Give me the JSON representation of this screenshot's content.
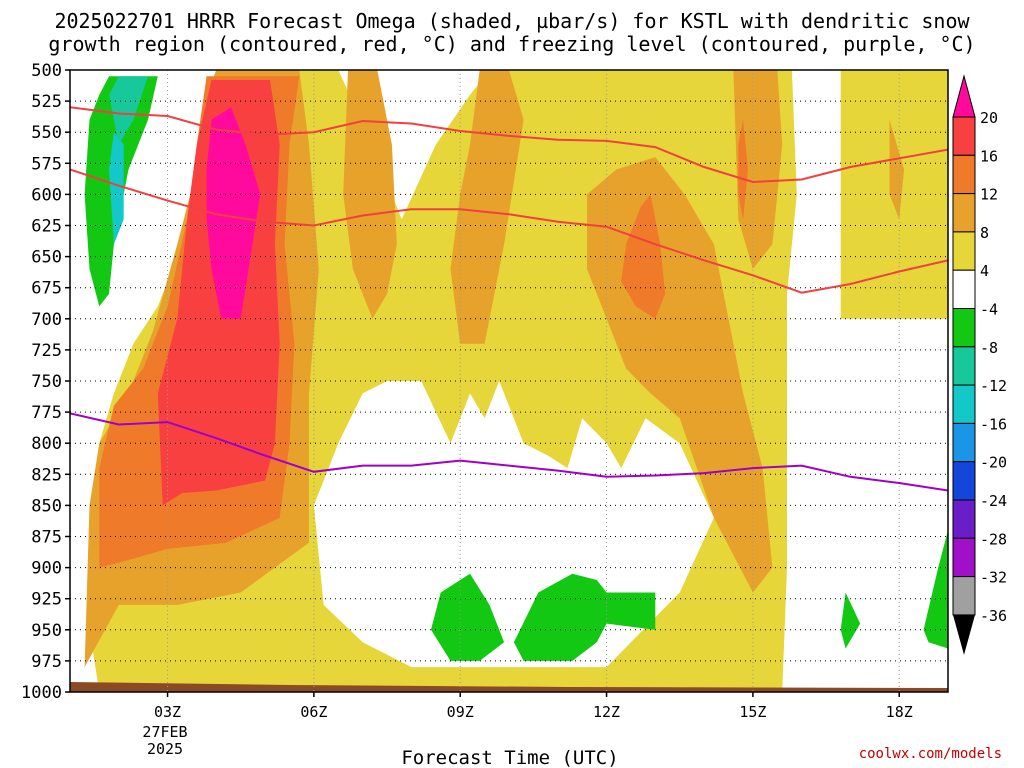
{
  "title": {
    "line1": "2025022701 HRRR Forecast Omega (shaded, µbar/s) for KSTL with dendritic snow",
    "line2": "growth region (contoured, red, °C) and freezing level (contoured, purple, °C)"
  },
  "credit": "coolwx.com/models",
  "chart_data": {
    "type": "heatmap",
    "title": "2025022701 HRRR Forecast Omega (shaded, µbar/s) for KSTL with dendritic snow growth region (contoured, red, °C) and freezing level (contoured, purple, °C)",
    "xlabel": "Forecast Time (UTC)",
    "ylabel": "",
    "x_ticks": [
      "03Z",
      "06Z",
      "09Z",
      "12Z",
      "15Z",
      "18Z"
    ],
    "x_tick_hours": [
      3,
      6,
      9,
      12,
      15,
      18
    ],
    "x_date_label": [
      "27FEB",
      "2025"
    ],
    "xlim_hours": [
      1,
      19
    ],
    "y_ticks": [
      500,
      525,
      550,
      575,
      600,
      625,
      650,
      675,
      700,
      725,
      750,
      775,
      800,
      825,
      850,
      875,
      900,
      925,
      950,
      975,
      1000
    ],
    "ylim_hPa": [
      500,
      1000
    ],
    "colorbar": {
      "tick_labels": [
        "20",
        "16",
        "12",
        "8",
        "4",
        "-4",
        "-8",
        "-12",
        "-16",
        "-20",
        "-24",
        "-28",
        "-32",
        "-36"
      ],
      "bins": [
        {
          "color": "#ff0a9c"
        },
        {
          "color": "#f84040"
        },
        {
          "color": "#ef7a2a"
        },
        {
          "color": "#e7a22c"
        },
        {
          "color": "#e6d63a"
        },
        {
          "color": "#ffffff"
        },
        {
          "color": "#12c812"
        },
        {
          "color": "#16c89a"
        },
        {
          "color": "#12c8c8"
        },
        {
          "color": "#1a96e6"
        },
        {
          "color": "#1446dc"
        },
        {
          "color": "#6a1ec8"
        },
        {
          "color": "#a010c8"
        },
        {
          "color": "#a0a0a0"
        }
      ]
    },
    "regions": [
      {
        "label": "4 to 8",
        "color": "#e6d63a",
        "points": [
          [
            1.6,
            1000
          ],
          [
            1.4,
            950
          ],
          [
            1.4,
            870
          ],
          [
            1.6,
            800
          ],
          [
            1.9,
            760
          ],
          [
            2.3,
            720
          ],
          [
            2.8,
            690
          ],
          [
            3.2,
            650
          ],
          [
            3.6,
            600
          ],
          [
            4.2,
            520
          ],
          [
            4.2,
            500
          ],
          [
            6.5,
            500
          ],
          [
            7.2,
            560
          ],
          [
            7.8,
            620
          ],
          [
            8.5,
            560
          ],
          [
            9.2,
            520
          ],
          [
            9.6,
            500
          ],
          [
            15.0,
            500
          ],
          [
            15.8,
            500
          ],
          [
            15.9,
            600
          ],
          [
            15.7,
            680
          ],
          [
            15.7,
            800
          ],
          [
            15.7,
            900
          ],
          [
            15.6,
            1000
          ]
        ]
      },
      {
        "label": "4 to 8",
        "color": "#e6d63a",
        "points": [
          [
            16.8,
            500
          ],
          [
            19,
            500
          ],
          [
            19,
            700
          ],
          [
            17.5,
            700
          ],
          [
            16.8,
            700
          ]
        ]
      },
      {
        "label": "-4 to 4",
        "color": "#ffffff",
        "points": [
          [
            6.0,
            850
          ],
          [
            6.5,
            800
          ],
          [
            7.0,
            760
          ],
          [
            7.5,
            750
          ],
          [
            8.2,
            750
          ],
          [
            8.8,
            800
          ],
          [
            9.2,
            760
          ],
          [
            9.5,
            780
          ],
          [
            9.8,
            750
          ],
          [
            10.3,
            800
          ],
          [
            10.8,
            810
          ],
          [
            11.2,
            820
          ],
          [
            11.5,
            780
          ],
          [
            12.0,
            800
          ],
          [
            12.3,
            820
          ],
          [
            12.8,
            780
          ],
          [
            13.5,
            800
          ],
          [
            14.2,
            860
          ],
          [
            13.5,
            920
          ],
          [
            12.5,
            960
          ],
          [
            12.0,
            980
          ],
          [
            11.0,
            980
          ],
          [
            10.0,
            980
          ],
          [
            9.0,
            980
          ],
          [
            8.0,
            980
          ],
          [
            7.0,
            960
          ],
          [
            6.2,
            930
          ]
        ]
      },
      {
        "label": "8 to 12",
        "color": "#e7a22c",
        "points": [
          [
            1.3,
            980
          ],
          [
            1.4,
            850
          ],
          [
            1.6,
            800
          ],
          [
            2.2,
            760
          ],
          [
            2.7,
            710
          ],
          [
            3.2,
            640
          ],
          [
            3.6,
            580
          ],
          [
            3.8,
            520
          ],
          [
            4.0,
            500
          ],
          [
            5.7,
            500
          ],
          [
            5.9,
            560
          ],
          [
            6.1,
            660
          ],
          [
            5.9,
            760
          ],
          [
            5.9,
            880
          ],
          [
            4.5,
            920
          ],
          [
            3.2,
            930
          ],
          [
            2.0,
            930
          ]
        ]
      },
      {
        "label": "8 to 12",
        "color": "#e7a22c",
        "points": [
          [
            6.7,
            500
          ],
          [
            7.3,
            500
          ],
          [
            7.6,
            560
          ],
          [
            7.7,
            640
          ],
          [
            7.5,
            680
          ],
          [
            7.2,
            700
          ],
          [
            6.8,
            660
          ],
          [
            6.6,
            600
          ]
        ]
      },
      {
        "label": "8 to 12",
        "color": "#e7a22c",
        "points": [
          [
            9.4,
            500
          ],
          [
            10.0,
            500
          ],
          [
            10.3,
            540
          ],
          [
            9.9,
            640
          ],
          [
            9.5,
            720
          ],
          [
            9.0,
            720
          ],
          [
            8.8,
            660
          ],
          [
            9.0,
            600
          ],
          [
            9.2,
            560
          ]
        ]
      },
      {
        "label": "8 to 12",
        "color": "#e7a22c",
        "points": [
          [
            11.6,
            600
          ],
          [
            12.2,
            580
          ],
          [
            13.0,
            570
          ],
          [
            13.6,
            600
          ],
          [
            14.2,
            640
          ],
          [
            14.5,
            700
          ],
          [
            14.8,
            760
          ],
          [
            15.2,
            820
          ],
          [
            15.4,
            900
          ],
          [
            15.0,
            920
          ],
          [
            14.2,
            860
          ],
          [
            13.5,
            780
          ],
          [
            12.9,
            760
          ],
          [
            12.4,
            740
          ],
          [
            12.0,
            700
          ],
          [
            11.6,
            660
          ]
        ]
      },
      {
        "label": "8 to 12",
        "color": "#e7a22c",
        "points": [
          [
            14.6,
            500
          ],
          [
            15.5,
            500
          ],
          [
            15.6,
            560
          ],
          [
            15.4,
            640
          ],
          [
            15.0,
            660
          ],
          [
            14.7,
            620
          ]
        ]
      },
      {
        "label": "8 to 12",
        "color": "#e7a22c",
        "points": [
          [
            17.8,
            540
          ],
          [
            18.1,
            580
          ],
          [
            18.0,
            620
          ],
          [
            17.8,
            600
          ]
        ]
      },
      {
        "label": "12 to 16",
        "color": "#ef7a2a",
        "points": [
          [
            1.6,
            900
          ],
          [
            1.6,
            820
          ],
          [
            1.9,
            770
          ],
          [
            2.5,
            740
          ],
          [
            3.0,
            690
          ],
          [
            3.4,
            620
          ],
          [
            3.6,
            560
          ],
          [
            3.8,
            505
          ],
          [
            5.7,
            505
          ],
          [
            5.5,
            560
          ],
          [
            5.4,
            640
          ],
          [
            5.6,
            720
          ],
          [
            5.5,
            800
          ],
          [
            5.3,
            860
          ],
          [
            4.2,
            880
          ],
          [
            3.0,
            885
          ],
          [
            2.1,
            895
          ]
        ]
      },
      {
        "label": "12 to 16",
        "color": "#ef7a2a",
        "points": [
          [
            12.4,
            640
          ],
          [
            12.7,
            610
          ],
          [
            12.9,
            600
          ],
          [
            13.1,
            640
          ],
          [
            13.2,
            680
          ],
          [
            13.0,
            700
          ],
          [
            12.6,
            690
          ],
          [
            12.3,
            670
          ]
        ]
      },
      {
        "label": "12 to 16",
        "color": "#ef7a2a",
        "points": [
          [
            14.8,
            540
          ],
          [
            14.9,
            580
          ],
          [
            14.8,
            620
          ],
          [
            14.7,
            600
          ],
          [
            14.7,
            560
          ]
        ]
      },
      {
        "label": "16 to 20",
        "color": "#f84040",
        "points": [
          [
            2.9,
            850
          ],
          [
            2.8,
            760
          ],
          [
            3.2,
            700
          ],
          [
            3.4,
            620
          ],
          [
            3.6,
            560
          ],
          [
            3.9,
            508
          ],
          [
            5.1,
            508
          ],
          [
            5.3,
            560
          ],
          [
            5.2,
            640
          ],
          [
            5.3,
            720
          ],
          [
            5.2,
            800
          ],
          [
            5.0,
            830
          ],
          [
            4.0,
            838
          ],
          [
            3.3,
            840
          ]
        ]
      },
      {
        "label": "> 20",
        "color": "#ff0a9c",
        "points": [
          [
            3.8,
            580
          ],
          [
            3.9,
            540
          ],
          [
            4.3,
            530
          ],
          [
            4.6,
            560
          ],
          [
            4.9,
            600
          ],
          [
            4.7,
            650
          ],
          [
            4.5,
            700
          ],
          [
            4.1,
            700
          ],
          [
            3.9,
            660
          ],
          [
            3.8,
            620
          ]
        ]
      },
      {
        "label": "-8 to -4",
        "color": "#12c812",
        "points": [
          [
            1.4,
            660
          ],
          [
            1.3,
            600
          ],
          [
            1.4,
            540
          ],
          [
            1.6,
            520
          ],
          [
            1.8,
            505
          ],
          [
            2.8,
            505
          ],
          [
            2.6,
            540
          ],
          [
            2.2,
            580
          ],
          [
            1.9,
            640
          ],
          [
            1.8,
            680
          ],
          [
            1.6,
            690
          ]
        ]
      },
      {
        "label": "-12 to -8",
        "color": "#16c89a",
        "points": [
          [
            1.8,
            520
          ],
          [
            2.0,
            505
          ],
          [
            2.6,
            505
          ],
          [
            2.3,
            540
          ],
          [
            2.0,
            560
          ]
        ]
      },
      {
        "label": "-16 to -12",
        "color": "#12c8c8",
        "points": [
          [
            1.8,
            580
          ],
          [
            1.9,
            550
          ],
          [
            2.1,
            560
          ],
          [
            2.1,
            620
          ],
          [
            1.9,
            640
          ]
        ]
      },
      {
        "label": "-8 to -4",
        "color": "#12c812",
        "points": [
          [
            8.4,
            950
          ],
          [
            8.6,
            920
          ],
          [
            9.2,
            905
          ],
          [
            9.6,
            930
          ],
          [
            9.9,
            960
          ],
          [
            9.4,
            975
          ],
          [
            8.8,
            975
          ]
        ]
      },
      {
        "label": "-8 to -4",
        "color": "#12c812",
        "points": [
          [
            10.1,
            960
          ],
          [
            10.6,
            920
          ],
          [
            11.3,
            905
          ],
          [
            11.8,
            910
          ],
          [
            12.0,
            920
          ],
          [
            13.0,
            920
          ],
          [
            13.0,
            950
          ],
          [
            12.0,
            945
          ],
          [
            11.8,
            960
          ],
          [
            11.3,
            975
          ],
          [
            10.3,
            975
          ]
        ]
      },
      {
        "label": "-8 to -4",
        "color": "#12c812",
        "points": [
          [
            16.8,
            950
          ],
          [
            16.9,
            920
          ],
          [
            17.2,
            945
          ],
          [
            16.9,
            965
          ]
        ]
      },
      {
        "label": "-8 to -4",
        "color": "#12c812",
        "points": [
          [
            18.5,
            950
          ],
          [
            18.8,
            900
          ],
          [
            19.0,
            870
          ],
          [
            19.0,
            965
          ],
          [
            18.6,
            960
          ]
        ]
      }
    ],
    "series": [
      {
        "name": "dendritic snow growth region",
        "color": "#f04040",
        "x": [
          1,
          2,
          3,
          4,
          5,
          6,
          7,
          8,
          9,
          10,
          11,
          12,
          13,
          14,
          15,
          16,
          17,
          18,
          19
        ],
        "y": [
          530,
          535,
          537,
          548,
          552,
          550,
          541,
          543,
          549,
          553,
          556,
          557,
          562,
          578,
          590,
          588,
          578,
          571,
          564
        ]
      },
      {
        "name": "dendritic snow growth region",
        "color": "#f04040",
        "x": [
          1,
          2,
          3,
          4,
          5,
          6,
          7,
          8,
          9,
          10,
          11,
          12,
          13,
          14,
          15,
          16,
          17,
          18,
          19
        ],
        "y": [
          580,
          593,
          605,
          616,
          622,
          625,
          617,
          612,
          612,
          616,
          622,
          626,
          640,
          653,
          665,
          679,
          672,
          662,
          653
        ]
      },
      {
        "name": "freezing level",
        "color": "#a000c8",
        "x": [
          1,
          2,
          3,
          4,
          5,
          6,
          7,
          8,
          9,
          10,
          11,
          12,
          13,
          14,
          15,
          16,
          17,
          18,
          19
        ],
        "y": [
          776,
          785,
          783,
          796,
          810,
          823,
          818,
          818,
          814,
          818,
          822,
          827,
          826,
          824,
          820,
          818,
          827,
          832,
          838
        ]
      }
    ],
    "terrain_color": "#8b4a25",
    "grid": true
  }
}
